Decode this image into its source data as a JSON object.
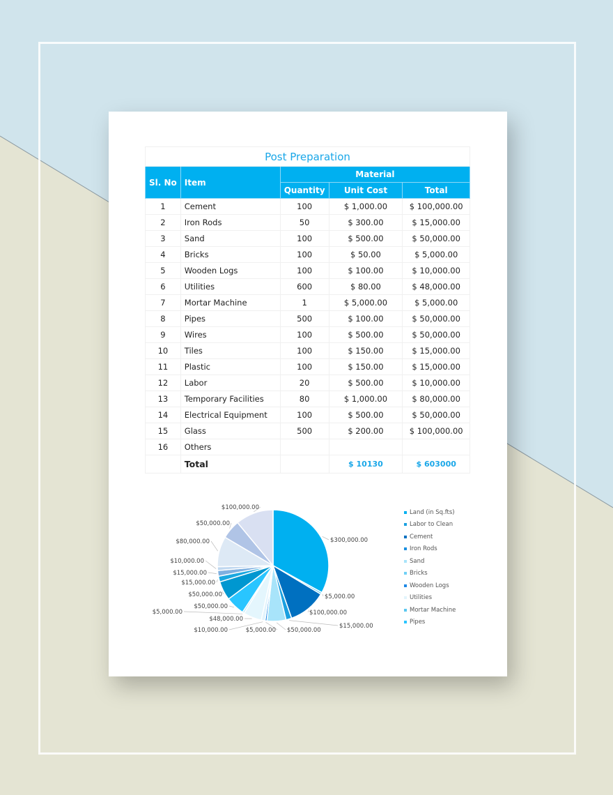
{
  "table": {
    "title": "Post Preparation",
    "headers": {
      "sl": "Sl. No",
      "item": "Item",
      "group": "Material",
      "qty": "Quantity",
      "unit": "Unit Cost",
      "total": "Total"
    },
    "rows": [
      [
        "1",
        "Cement",
        "100",
        "$ 1,000.00",
        "$ 100,000.00"
      ],
      [
        "2",
        "Iron Rods",
        "50",
        "$ 300.00",
        "$ 15,000.00"
      ],
      [
        "3",
        "Sand",
        "100",
        "$ 500.00",
        "$ 50,000.00"
      ],
      [
        "4",
        "Bricks",
        "100",
        "$ 50.00",
        "$ 5,000.00"
      ],
      [
        "5",
        "Wooden Logs",
        "100",
        "$ 100.00",
        "$ 10,000.00"
      ],
      [
        "6",
        "Utilities",
        "600",
        "$ 80.00",
        "$ 48,000.00"
      ],
      [
        "7",
        "Mortar Machine",
        "1",
        "$ 5,000.00",
        "$ 5,000.00"
      ],
      [
        "8",
        "Pipes",
        "500",
        "$ 100.00",
        "$ 50,000.00"
      ],
      [
        "9",
        "Wires",
        "100",
        "$ 500.00",
        "$ 50,000.00"
      ],
      [
        "10",
        "Tiles",
        "100",
        "$ 150.00",
        "$ 15,000.00"
      ],
      [
        "11",
        "Plastic",
        "100",
        "$ 150.00",
        "$ 15,000.00"
      ],
      [
        "12",
        "Labor",
        "20",
        "$ 500.00",
        "$ 10,000.00"
      ],
      [
        "13",
        "Temporary Facilities",
        "80",
        "$ 1,000.00",
        "$ 80,000.00"
      ],
      [
        "14",
        "Electrical Equipment",
        "100",
        "$ 500.00",
        "$ 50,000.00"
      ],
      [
        "15",
        "Glass",
        "500",
        "$ 200.00",
        "$ 100,000.00"
      ],
      [
        "16",
        "Others",
        "",
        "",
        ""
      ]
    ],
    "total_label": "Total",
    "total_unit": "$ 10130",
    "total_total": "$ 603000"
  },
  "chart_data": {
    "type": "pie",
    "values": [
      300000,
      5000,
      100000,
      15000,
      50000,
      5000,
      10000,
      48000,
      5000,
      50000,
      50000,
      15000,
      15000,
      10000,
      80000,
      50000,
      100000
    ],
    "labels": [
      "$300,000.00",
      "$5,000.00",
      "$100,000.00",
      "$15,000.00",
      "$50,000.00",
      "$5,000.00",
      "$10,000.00",
      "$48,000.00",
      "$5,000.00",
      "$50,000.00",
      "$50,000.00",
      "$15,000.00",
      "$15,000.00",
      "$10,000.00",
      "$80,000.00",
      "$50,000.00",
      "$100,000.00"
    ],
    "colors": [
      "#00b0f0",
      "#5bc8f0",
      "#0070c0",
      "#1aa0e0",
      "#a8e4fa",
      "#1e88e5",
      "#e2f4fc",
      "#e4f6fd",
      "#b8e8f8",
      "#29c5ff",
      "#0097d0",
      "#1aa8e0",
      "#7fb0e0",
      "#c0d8f0",
      "#dde9f5",
      "#b0c4e6",
      "#d9e0f2"
    ],
    "legend": [
      {
        "label": "Land (in Sq.fts)",
        "color": "#00b0f0"
      },
      {
        "label": "Labor to Clean",
        "color": "#1aa0e0"
      },
      {
        "label": "Cement",
        "color": "#0070c0"
      },
      {
        "label": "Iron Rods",
        "color": "#1a8fe0"
      },
      {
        "label": "Sand",
        "color": "#a8e4fa"
      },
      {
        "label": "Bricks",
        "color": "#6fd0f5"
      },
      {
        "label": "Wooden Logs",
        "color": "#1e88e5"
      },
      {
        "label": "Utilities",
        "color": "#e2f4fc"
      },
      {
        "label": "Mortar Machine",
        "color": "#5bc8f0"
      },
      {
        "label": "Pipes",
        "color": "#29c5ff"
      }
    ],
    "legend_position": "right"
  }
}
